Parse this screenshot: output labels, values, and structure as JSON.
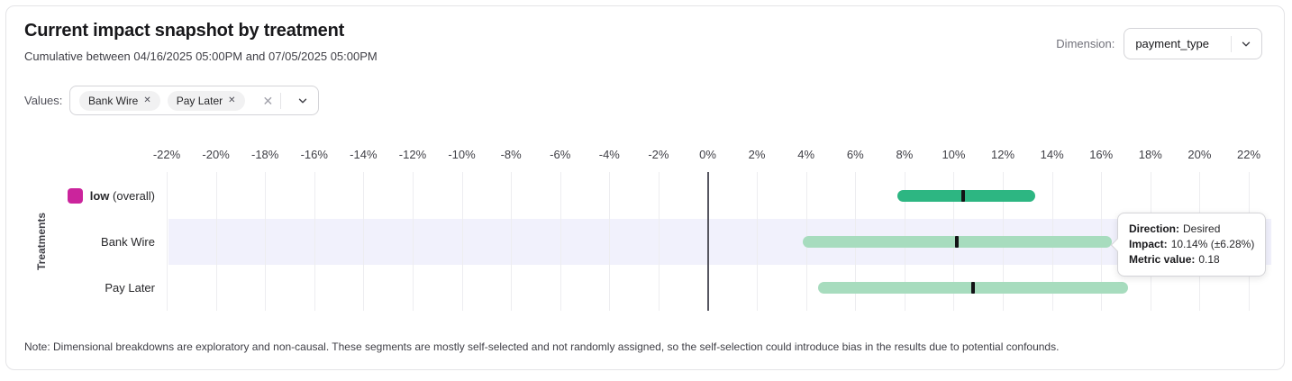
{
  "header": {
    "title": "Current impact snapshot by treatment",
    "subtitle": "Cumulative between 04/16/2025 05:00PM and 07/05/2025 05:00PM"
  },
  "dimension": {
    "label": "Dimension:",
    "value": "payment_type"
  },
  "values_filter": {
    "label": "Values:",
    "chips": [
      "Bank Wire",
      "Pay Later"
    ]
  },
  "chart_data": {
    "type": "bar",
    "subtype": "horizontal-interval-range",
    "ylabel": "Treatments",
    "xlim": [
      -22,
      22
    ],
    "x_tick_step": 2,
    "x_tick_labels": [
      "-22%",
      "-20%",
      "-18%",
      "-16%",
      "-14%",
      "-12%",
      "-10%",
      "-8%",
      "-6%",
      "-4%",
      "-2%",
      "0%",
      "2%",
      "4%",
      "6%",
      "8%",
      "10%",
      "12%",
      "14%",
      "16%",
      "18%",
      "20%",
      "22%"
    ],
    "grid": true,
    "rows": [
      {
        "label": "low",
        "label_suffix": "(overall)",
        "swatch": "#cb249c",
        "low": 7.7,
        "high": 13.3,
        "impact": 10.4,
        "bar_color": "#2db682",
        "highlighted": false
      },
      {
        "label": "Bank Wire",
        "label_suffix": "",
        "swatch": "",
        "low": 3.86,
        "high": 16.42,
        "impact": 10.14,
        "bar_color": "#a7dcbe",
        "highlighted": true
      },
      {
        "label": "Pay Later",
        "label_suffix": "",
        "swatch": "",
        "low": 4.5,
        "high": 17.1,
        "impact": 10.8,
        "bar_color": "#a7dcbe",
        "highlighted": false
      }
    ]
  },
  "tooltip": {
    "rows": [
      {
        "label": "Direction:",
        "value": "Desired"
      },
      {
        "label": "Impact:",
        "value": "10.14% (±6.28%)"
      },
      {
        "label": "Metric value:",
        "value": "0.18"
      }
    ]
  },
  "colors": {
    "overall_bar": "#2db682",
    "segment_bar": "#a7dcbe",
    "impact_marker": "#131316",
    "legend_swatch": "#cb249c",
    "row_highlight": "#f1f1fc",
    "zero_line": "#55555f"
  },
  "note": "Note: Dimensional breakdowns are exploratory and non-causal. These segments are mostly self-selected and not randomly assigned, so the self-selection could introduce bias in the results due to potential confounds."
}
